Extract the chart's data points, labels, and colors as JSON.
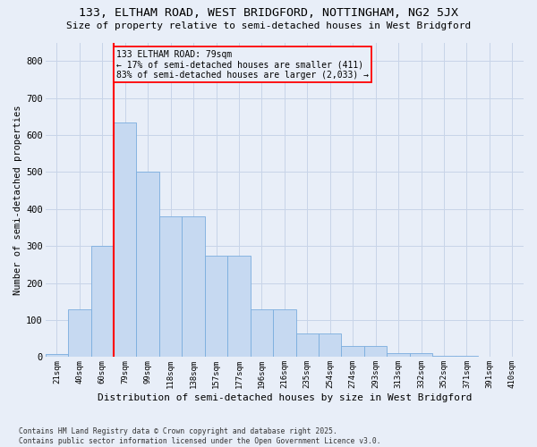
{
  "title1": "133, ELTHAM ROAD, WEST BRIDGFORD, NOTTINGHAM, NG2 5JX",
  "title2": "Size of property relative to semi-detached houses in West Bridgford",
  "xlabel": "Distribution of semi-detached houses by size in West Bridgford",
  "ylabel": "Number of semi-detached properties",
  "footnote": "Contains HM Land Registry data © Crown copyright and database right 2025.\nContains public sector information licensed under the Open Government Licence v3.0.",
  "bin_labels": [
    "21sqm",
    "40sqm",
    "60sqm",
    "79sqm",
    "99sqm",
    "118sqm",
    "138sqm",
    "157sqm",
    "177sqm",
    "196sqm",
    "216sqm",
    "235sqm",
    "254sqm",
    "274sqm",
    "293sqm",
    "313sqm",
    "332sqm",
    "352sqm",
    "371sqm",
    "391sqm",
    "410sqm"
  ],
  "bar_values": [
    8,
    130,
    300,
    635,
    500,
    380,
    380,
    273,
    273,
    130,
    130,
    63,
    63,
    30,
    30,
    10,
    10,
    3,
    3,
    1,
    1
  ],
  "bar_color": "#c6d9f1",
  "bar_edgecolor": "#7aadde",
  "grid_color": "#c8d4e8",
  "background_color": "#e8eef8",
  "vline_x_index": 3,
  "vline_color": "red",
  "annotation_text": "133 ELTHAM ROAD: 79sqm\n← 17% of semi-detached houses are smaller (411)\n83% of semi-detached houses are larger (2,033) →",
  "annotation_box_color": "red",
  "ylim": [
    0,
    850
  ],
  "yticks": [
    0,
    100,
    200,
    300,
    400,
    500,
    600,
    700,
    800
  ]
}
